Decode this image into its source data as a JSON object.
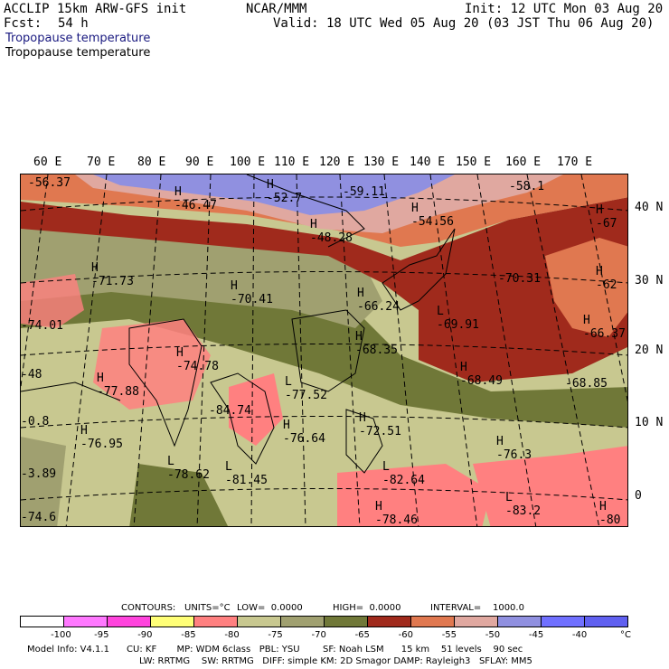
{
  "header": {
    "model": "ACCLIP 15km ARW-GFS init",
    "center": "NCAR/MMM",
    "init": "Init: 12 UTC Mon 03 Aug 20",
    "fcst_label": "Fcst:",
    "fcst_value": "54 h",
    "valid": "Valid: 18 UTC Wed 05 Aug 20 (03 JST Thu 06 Aug 20)",
    "field_title_1": "Tropopause temperature",
    "field_title_2": "Tropopause temperature"
  },
  "longitude_labels": [
    "60 E",
    "70 E",
    "80 E",
    "90 E",
    "100 E",
    "110 E",
    "120 E",
    "130 E",
    "140 E",
    "150 E",
    "160 E",
    "170 E"
  ],
  "latitude_labels": [
    "40 N",
    "30 N",
    "20 N",
    "10 N",
    "0"
  ],
  "map_labels": [
    {
      "mark": "",
      "value": "-56.37"
    },
    {
      "mark": "H",
      "value": "-46.47"
    },
    {
      "mark": "H",
      "value": "-52.7"
    },
    {
      "mark": "",
      "value": "-59.11"
    },
    {
      "mark": "H",
      "value": "-48.28"
    },
    {
      "mark": "H",
      "value": "-54.56"
    },
    {
      "mark": "",
      "value": "-58.1"
    },
    {
      "mark": "H",
      "value": "-67"
    },
    {
      "mark": "H",
      "value": "-71.73"
    },
    {
      "mark": "H",
      "value": "-70.41"
    },
    {
      "mark": "H",
      "value": "-66.24"
    },
    {
      "mark": "L",
      "value": "-69.91"
    },
    {
      "mark": "",
      "value": "-70.31"
    },
    {
      "mark": "H",
      "value": "-62"
    },
    {
      "mark": "",
      "value": "-74.01"
    },
    {
      "mark": "H",
      "value": "-74.78"
    },
    {
      "mark": "H",
      "value": "-68.35"
    },
    {
      "mark": "H",
      "value": "-66.37"
    },
    {
      "mark": "",
      "value": "-48"
    },
    {
      "mark": "H",
      "value": "-77.88"
    },
    {
      "mark": "L",
      "value": "-77.52"
    },
    {
      "mark": "H",
      "value": "-68.49"
    },
    {
      "mark": "",
      "value": "-68.85"
    },
    {
      "mark": "",
      "value": "-84.74"
    },
    {
      "mark": "H",
      "value": "-76.64"
    },
    {
      "mark": "H",
      "value": "-72.51"
    },
    {
      "mark": "",
      "value": "-0.8"
    },
    {
      "mark": "H",
      "value": "-76.95"
    },
    {
      "mark": "H",
      "value": "-76.3"
    },
    {
      "mark": "L",
      "value": "-78.62"
    },
    {
      "mark": "L",
      "value": "-81.45"
    },
    {
      "mark": "L",
      "value": "-82.64"
    },
    {
      "mark": "",
      "value": "-3.89"
    },
    {
      "mark": "L",
      "value": "-83.2"
    },
    {
      "mark": "H",
      "value": "-80"
    },
    {
      "mark": "",
      "value": "-74.6"
    },
    {
      "mark": "H",
      "value": "-78.46"
    }
  ],
  "contour_info": {
    "contours": "CONTOURS:",
    "units": "UNITS=°C",
    "low": "LOW=  0.0000",
    "high": "HIGH=  0.0000",
    "interval": "INTERVAL=    1000.0"
  },
  "color_scale": {
    "colors": [
      "#ffffff",
      "#ff78ff",
      "#ff44dd",
      "#ffff77",
      "#ff8080",
      "#c8c890",
      "#a0a070",
      "#707838",
      "#a02a1c",
      "#e07850",
      "#e0a8a0",
      "#9090e0",
      "#7070ff",
      "#6060f0"
    ],
    "tick_values": [
      "-100",
      "-95",
      "-90",
      "-85",
      "-80",
      "-75",
      "-70",
      "-65",
      "-60",
      "-55",
      "-50",
      "-45",
      "-40"
    ],
    "unit": "°C"
  },
  "model_info": {
    "line1": "Model Info: V4.1.1      CU: KF       MP: WDM 6class   PBL: YSU        SF: Noah LSM      15 km    51 levels    90 sec",
    "line2": "LW: RRTMG    SW: RRTMG   DIFF: simple KM: 2D Smagor DAMP: Rayleigh3   SFLAY: MM5"
  }
}
